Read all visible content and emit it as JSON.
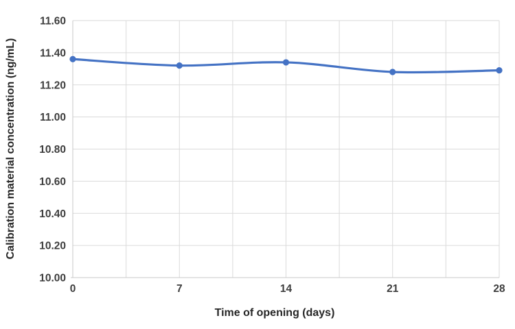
{
  "chart_data": {
    "type": "line",
    "title": "",
    "xlabel": "Time of opening (days)",
    "ylabel": "Calibration material concentration (ng/mL)",
    "x": [
      0,
      7,
      14,
      21,
      28
    ],
    "series": [
      {
        "name": "Calibration material concentration",
        "values": [
          11.36,
          11.32,
          11.34,
          11.28,
          11.29
        ]
      }
    ],
    "xlim": [
      0,
      28
    ],
    "ylim": [
      10.0,
      11.6
    ],
    "x_tick_labels": [
      "0",
      "7",
      "14",
      "21",
      "28"
    ],
    "y_tick_values": [
      10.0,
      10.2,
      10.4,
      10.6,
      10.8,
      11.0,
      11.2,
      11.4,
      11.6
    ],
    "y_tick_labels": [
      "10.00",
      "10.20",
      "10.40",
      "10.60",
      "10.80",
      "11.00",
      "11.20",
      "11.40",
      "11.60"
    ],
    "x_grid_step": 3.5,
    "grid": true,
    "legend_position": "none",
    "line_smoothing": true,
    "colors": {
      "line": "#4472C4",
      "marker": "#4472C4",
      "grid": "#DADADA",
      "axis": "#C9C9C9",
      "tick_label": "#3D3D3D",
      "axis_title": "#262626",
      "background": "#FFFFFF"
    }
  }
}
